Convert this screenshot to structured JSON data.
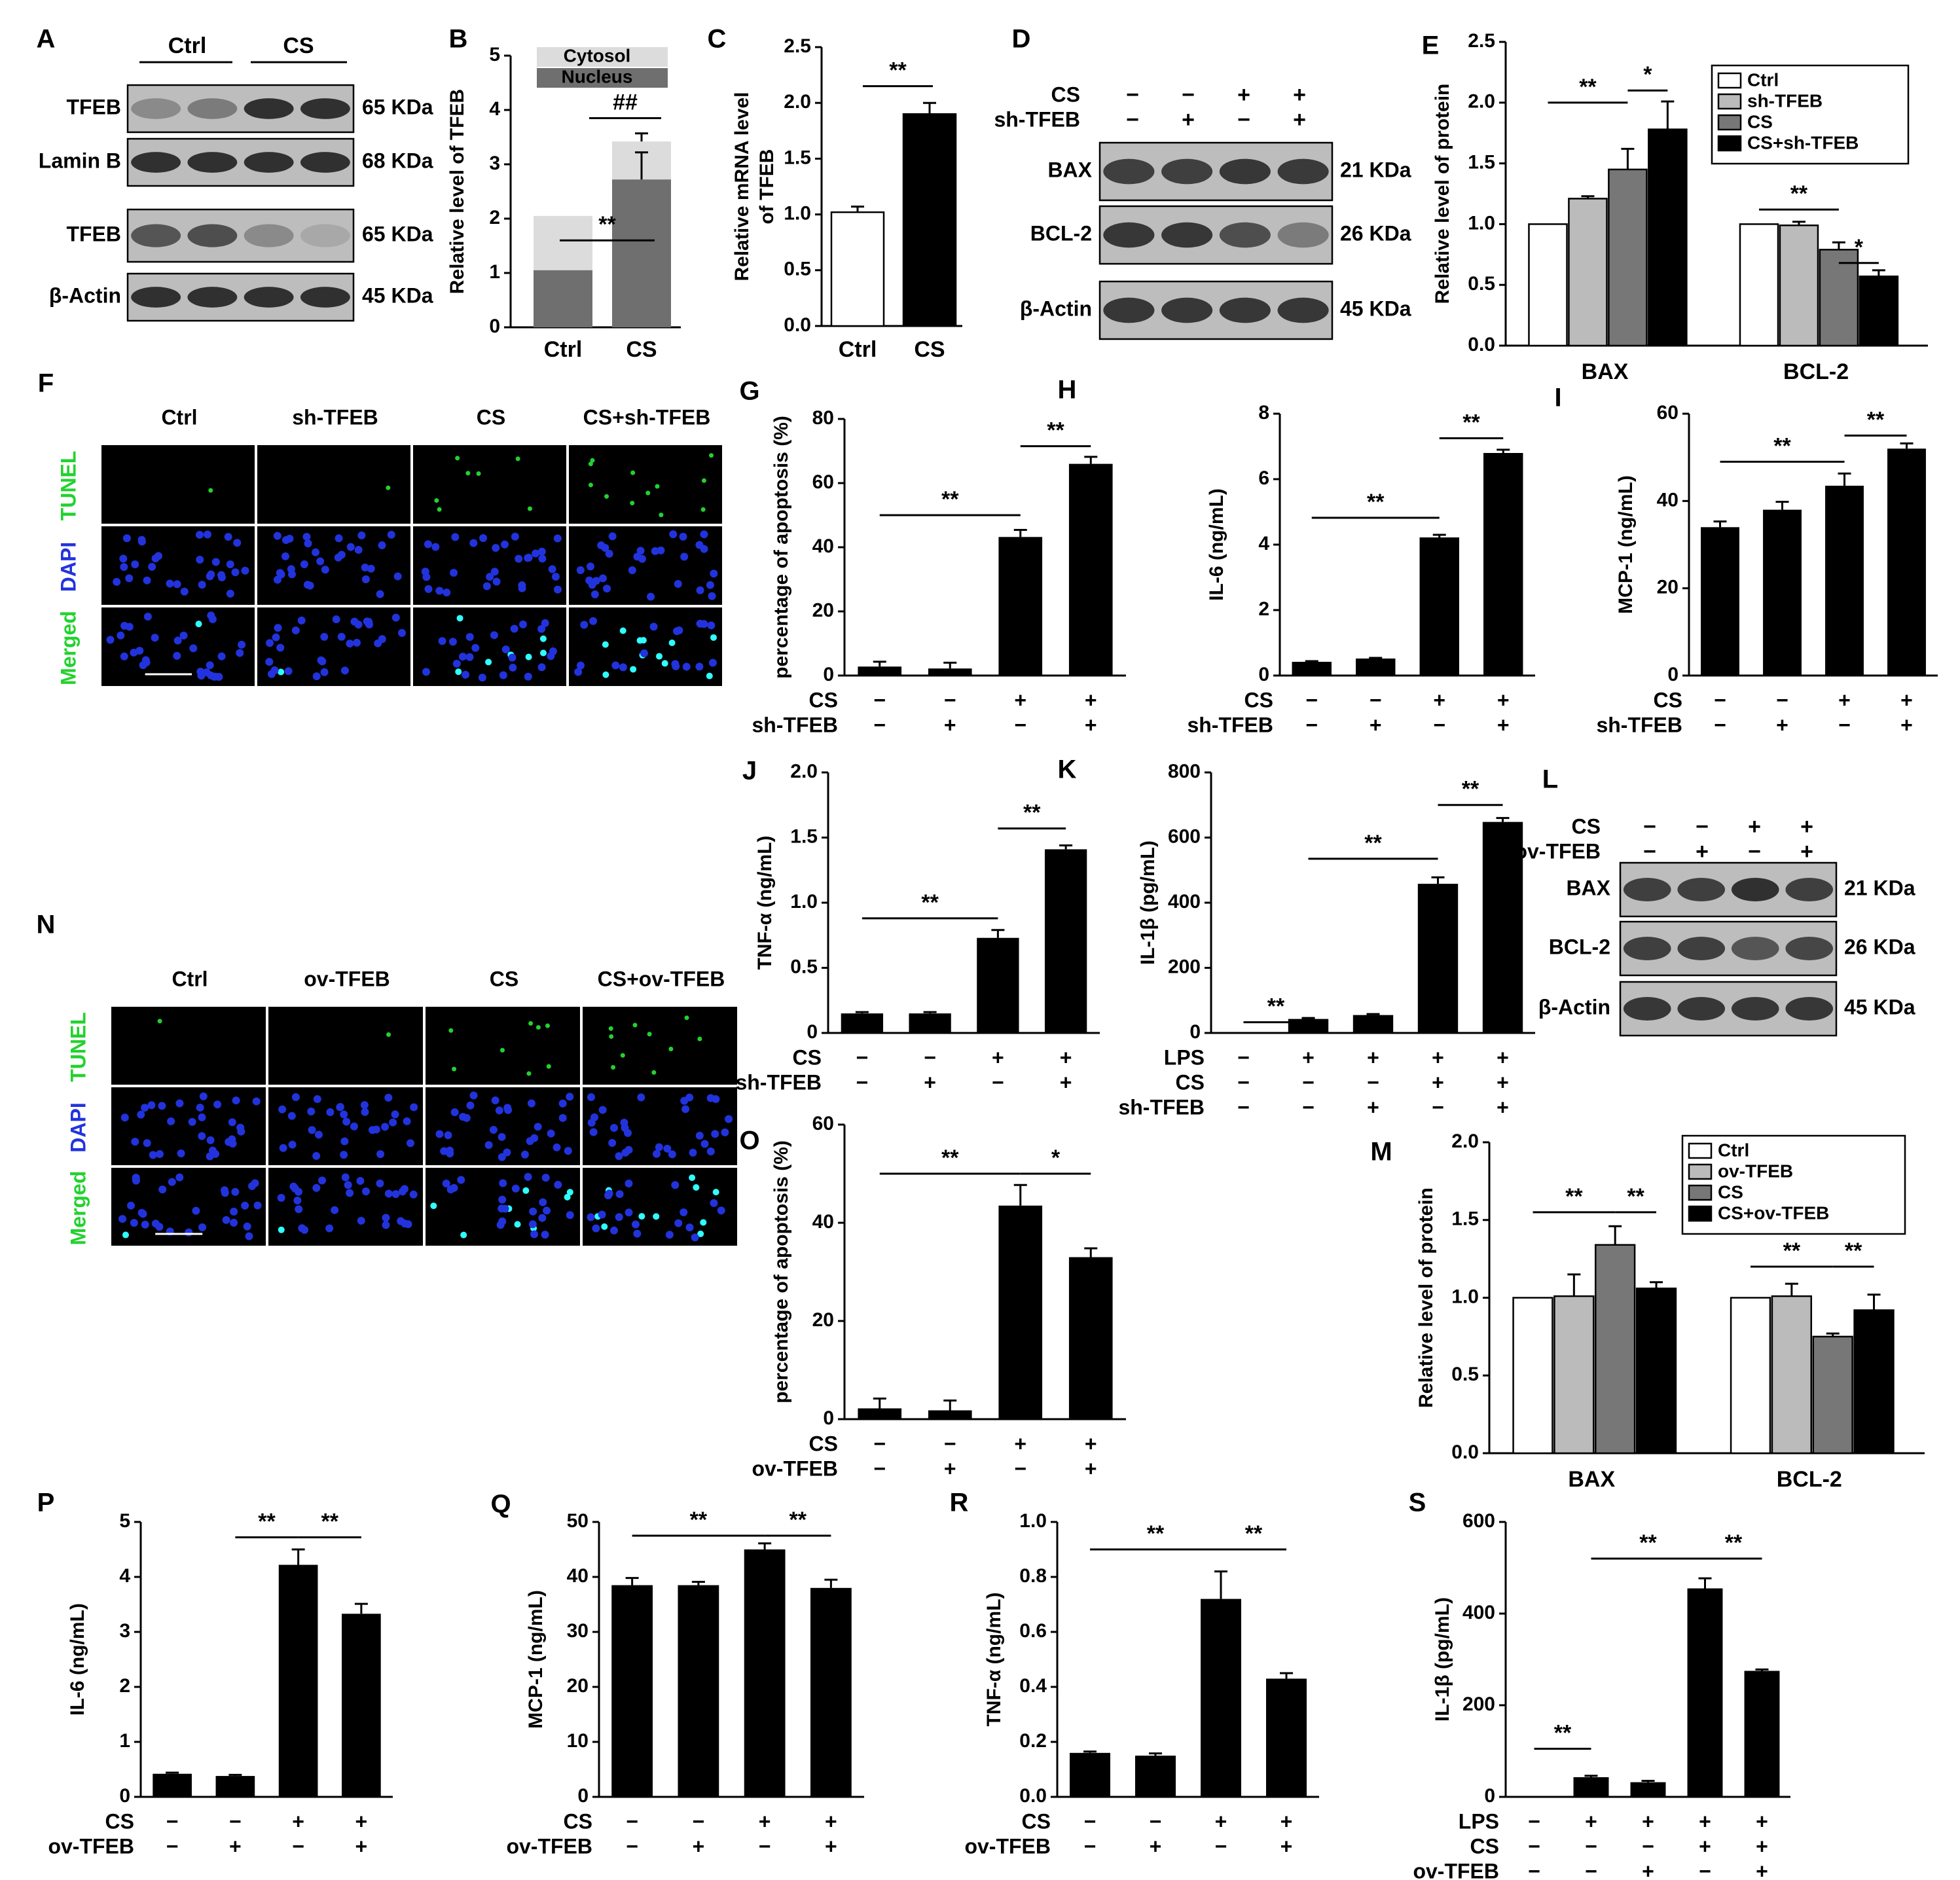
{
  "panel_labels": [
    "A",
    "B",
    "C",
    "D",
    "E",
    "F",
    "G",
    "H",
    "I",
    "J",
    "K",
    "L",
    "M",
    "N",
    "O",
    "P",
    "Q",
    "R",
    "S"
  ],
  "colors": {
    "white": "#ffffff",
    "light": "#bbbbbb",
    "mid": "#777777",
    "black": "#000000",
    "cytosol": "#dcdcdc",
    "nucleus": "#6f6f6f",
    "green": "#22d22e",
    "blue": "#2233dd",
    "cyan": "#30ffff"
  },
  "symbols": {
    "minus": "−",
    "plus": "+",
    "sig2": "**",
    "sig1": "*",
    "hash2": "##"
  },
  "blots": {
    "A": {
      "groups": [
        "Ctrl",
        "CS"
      ],
      "rows": [
        [
          "TFEB",
          "65 KDa"
        ],
        [
          "Lamin B",
          "68 KDa"
        ],
        [
          "TFEB",
          "65 KDa"
        ],
        [
          "β-Actin",
          "45 KDa"
        ]
      ]
    },
    "D": {
      "cond": [
        [
          "CS",
          "−",
          "−",
          "+",
          "+"
        ],
        [
          "sh-TFEB",
          "−",
          "+",
          "−",
          "+"
        ]
      ],
      "rows": [
        [
          "BAX",
          "21 KDa"
        ],
        [
          "BCL-2",
          "26 KDa"
        ],
        [
          "β-Actin",
          "45 KDa"
        ]
      ]
    },
    "L": {
      "cond": [
        [
          "CS",
          "−",
          "−",
          "+",
          "+"
        ],
        [
          "ov-TFEB",
          "−",
          "+",
          "−",
          "+"
        ]
      ],
      "rows": [
        [
          "BAX",
          "21 KDa"
        ],
        [
          "BCL-2",
          "26 KDa"
        ],
        [
          "β-Actin",
          "45 KDa"
        ]
      ]
    }
  },
  "micro": {
    "F": {
      "cols": [
        "Ctrl",
        "sh-TFEB",
        "CS",
        "CS+sh-TFEB"
      ],
      "rows": [
        "TUNEL",
        "DAPI",
        "Merged"
      ]
    },
    "N": {
      "cols": [
        "Ctrl",
        "ov-TFEB",
        "CS",
        "CS+ov-TFEB"
      ],
      "rows": [
        "TUNEL",
        "DAPI",
        "Merged"
      ]
    }
  },
  "chart_data": [
    {
      "panel": "B",
      "type": "bar",
      "categories": [
        "Ctrl",
        "CS"
      ],
      "ylabel": "Relative level of TFEB",
      "ylim": [
        0,
        5
      ],
      "yticks": [
        "0",
        "1",
        "2",
        "3",
        "4",
        "5"
      ],
      "series": [
        {
          "name": "Cytosol",
          "values": [
            2.05,
            3.42
          ]
        },
        {
          "name": "Nucleus",
          "values": [
            1.05,
            2.72
          ]
        }
      ],
      "errors": [
        0,
        0.5
      ],
      "legend": [
        "Cytosol",
        "Nucleus"
      ],
      "sig": [
        "**",
        "##"
      ]
    },
    {
      "panel": "C",
      "type": "bar",
      "categories": [
        "Ctrl",
        "CS"
      ],
      "ylabel": "Relative mRNA level of TFEB",
      "ylim": [
        0,
        2.5
      ],
      "yticks": [
        "0.0",
        "0.5",
        "1.0",
        "1.5",
        "2.0",
        "2.5"
      ],
      "values": [
        1.02,
        1.9
      ],
      "errors": [
        0.05,
        0.1
      ],
      "sig": [
        "**"
      ]
    },
    {
      "panel": "E",
      "type": "bar",
      "categories": [
        "BAX",
        "BCL-2"
      ],
      "ylabel": "Relative level of protein",
      "ylim": [
        0,
        2.5
      ],
      "yticks": [
        "0.0",
        "0.5",
        "1.0",
        "1.5",
        "2.0",
        "2.5"
      ],
      "series": [
        {
          "name": "Ctrl",
          "values": [
            1.0,
            1.0
          ]
        },
        {
          "name": "sh-TFEB",
          "values": [
            1.21,
            0.99
          ]
        },
        {
          "name": "CS",
          "values": [
            1.45,
            0.79
          ]
        },
        {
          "name": "CS+sh-TFEB",
          "values": [
            1.78,
            0.57
          ]
        }
      ],
      "errors": [
        [
          0,
          0.02,
          0.17,
          0.23
        ],
        [
          0,
          0.03,
          0.06,
          0.05
        ]
      ],
      "sig": [
        "**",
        "*",
        "**",
        "*"
      ]
    },
    {
      "panel": "G",
      "type": "bar",
      "ylabel": "percentage of apoptosis (%)",
      "ylim": [
        0,
        80
      ],
      "yticks": [
        "0",
        "20",
        "40",
        "60",
        "80"
      ],
      "values": [
        2.8,
        2.2,
        43.2,
        66
      ],
      "errors": [
        1.5,
        1.8,
        2.2,
        2.2
      ],
      "cond": [
        [
          "CS",
          "−",
          "−",
          "+",
          "+"
        ],
        [
          "sh-TFEB",
          "−",
          "+",
          "−",
          "+"
        ]
      ],
      "sig": [
        "**",
        "**"
      ]
    },
    {
      "panel": "H",
      "type": "bar",
      "ylabel": "IL-6 (ng/mL)",
      "ylim": [
        0,
        8
      ],
      "yticks": [
        "0",
        "2",
        "4",
        "6",
        "8"
      ],
      "values": [
        0.42,
        0.52,
        4.22,
        6.8
      ],
      "errors": [
        0.02,
        0.02,
        0.08,
        0.1
      ],
      "cond": [
        [
          "CS",
          "−",
          "−",
          "+",
          "+"
        ],
        [
          "sh-TFEB",
          "−",
          "+",
          "−",
          "+"
        ]
      ],
      "sig": [
        "**",
        "**"
      ]
    },
    {
      "panel": "I",
      "type": "bar",
      "ylabel": "MCP-1 (ng/mL)",
      "ylim": [
        0,
        60
      ],
      "yticks": [
        "0",
        "20",
        "40",
        "60"
      ],
      "values": [
        34,
        38,
        43.5,
        52
      ],
      "errors": [
        1.3,
        1.8,
        2.8,
        1.2
      ],
      "cond": [
        [
          "CS",
          "−",
          "−",
          "+",
          "+"
        ],
        [
          "sh-TFEB",
          "−",
          "+",
          "−",
          "+"
        ]
      ],
      "sig": [
        "**",
        "**"
      ]
    },
    {
      "panel": "J",
      "type": "bar",
      "ylabel": "TNF-α (ng/mL)",
      "ylim": [
        0,
        2.0
      ],
      "yticks": [
        "0",
        "0.5",
        "1.0",
        "1.5",
        "2.0"
      ],
      "values": [
        0.15,
        0.15,
        0.73,
        1.41
      ],
      "errors": [
        0.01,
        0.01,
        0.06,
        0.03
      ],
      "cond": [
        [
          "CS",
          "−",
          "−",
          "+",
          "+"
        ],
        [
          "sh-TFEB",
          "−",
          "+",
          "−",
          "+"
        ]
      ],
      "sig": [
        "**",
        "**"
      ]
    },
    {
      "panel": "K",
      "type": "bar",
      "ylabel": "IL-1β (pg/mL)",
      "ylim": [
        0,
        800
      ],
      "yticks": [
        "0",
        "200",
        "400",
        "600",
        "800"
      ],
      "values": [
        0,
        43,
        55,
        458,
        648
      ],
      "errors": [
        0,
        3,
        3,
        20,
        12
      ],
      "cond": [
        [
          "LPS",
          "−",
          "+",
          "+",
          "+",
          "+"
        ],
        [
          "CS",
          "−",
          "−",
          "−",
          "+",
          "+"
        ],
        [
          "sh-TFEB",
          "−",
          "−",
          "+",
          "−",
          "+"
        ]
      ],
      "sig": [
        "**",
        "**",
        "**"
      ]
    },
    {
      "panel": "M",
      "type": "bar",
      "categories": [
        "BAX",
        "BCL-2"
      ],
      "ylabel": "Relative level of protein",
      "ylim": [
        0,
        2.0
      ],
      "yticks": [
        "0.0",
        "0.5",
        "1.0",
        "1.5",
        "2.0"
      ],
      "series": [
        {
          "name": "Ctrl",
          "values": [
            1.0,
            1.0
          ]
        },
        {
          "name": "ov-TFEB",
          "values": [
            1.01,
            1.01
          ]
        },
        {
          "name": "CS",
          "values": [
            1.34,
            0.75
          ]
        },
        {
          "name": "CS+ov-TFEB",
          "values": [
            1.06,
            0.92
          ]
        }
      ],
      "errors": [
        [
          0,
          0.14,
          0.12,
          0.04
        ],
        [
          0,
          0.08,
          0.02,
          0.1
        ]
      ],
      "sig": [
        "**",
        "**",
        "**",
        "**"
      ]
    },
    {
      "panel": "O",
      "type": "bar",
      "ylabel": "percentage of apoptosis (%)",
      "ylim": [
        0,
        60
      ],
      "yticks": [
        "0",
        "20",
        "40",
        "60"
      ],
      "values": [
        2.2,
        1.8,
        43.5,
        33
      ],
      "errors": [
        2,
        2,
        4.2,
        1.8
      ],
      "cond": [
        [
          "CS",
          "−",
          "−",
          "+",
          "+"
        ],
        [
          "ov-TFEB",
          "−",
          "+",
          "−",
          "+"
        ]
      ],
      "sig": [
        "**",
        "*"
      ]
    },
    {
      "panel": "P",
      "type": "bar",
      "ylabel": "IL-6 (ng/mL)",
      "ylim": [
        0,
        5
      ],
      "yticks": [
        "0",
        "1",
        "2",
        "3",
        "4",
        "5"
      ],
      "values": [
        0.42,
        0.38,
        4.22,
        3.33
      ],
      "errors": [
        0.02,
        0.02,
        0.28,
        0.18
      ],
      "cond": [
        [
          "CS",
          "−",
          "−",
          "+",
          "+"
        ],
        [
          "ov-TFEB",
          "−",
          "+",
          "−",
          "+"
        ]
      ],
      "sig": [
        "**",
        "**"
      ]
    },
    {
      "panel": "Q",
      "type": "bar",
      "ylabel": "MCP-1 (ng/mL)",
      "ylim": [
        0,
        50
      ],
      "yticks": [
        "0",
        "10",
        "20",
        "30",
        "40",
        "50"
      ],
      "values": [
        38.5,
        38.5,
        45,
        38
      ],
      "errors": [
        1.3,
        0.6,
        1.1,
        1.5
      ],
      "cond": [
        [
          "CS",
          "−",
          "−",
          "+",
          "+"
        ],
        [
          "ov-TFEB",
          "−",
          "+",
          "−",
          "+"
        ]
      ],
      "sig": [
        "**",
        "**"
      ]
    },
    {
      "panel": "R",
      "type": "bar",
      "ylabel": "TNF-α (ng/mL)",
      "ylim": [
        0,
        1.0
      ],
      "yticks": [
        "0.0",
        "0.2",
        "0.4",
        "0.6",
        "0.8",
        "1.0"
      ],
      "values": [
        0.16,
        0.15,
        0.72,
        0.43
      ],
      "errors": [
        0.005,
        0.008,
        0.1,
        0.02
      ],
      "cond": [
        [
          "CS",
          "−",
          "−",
          "+",
          "+"
        ],
        [
          "ov-TFEB",
          "−",
          "+",
          "−",
          "+"
        ]
      ],
      "sig": [
        "**",
        "**"
      ]
    },
    {
      "panel": "S",
      "type": "bar",
      "ylabel": "IL-1β (pg/mL)",
      "ylim": [
        0,
        600
      ],
      "yticks": [
        "0",
        "200",
        "400",
        "600"
      ],
      "values": [
        0,
        43,
        32,
        455,
        275
      ],
      "errors": [
        0,
        3,
        3,
        22,
        3
      ],
      "cond": [
        [
          "LPS",
          "−",
          "+",
          "+",
          "+",
          "+"
        ],
        [
          "CS",
          "−",
          "−",
          "−",
          "+",
          "+"
        ],
        [
          "ov-TFEB",
          "−",
          "−",
          "+",
          "−",
          "+"
        ]
      ],
      "sig": [
        "**",
        "**",
        "**"
      ]
    }
  ]
}
